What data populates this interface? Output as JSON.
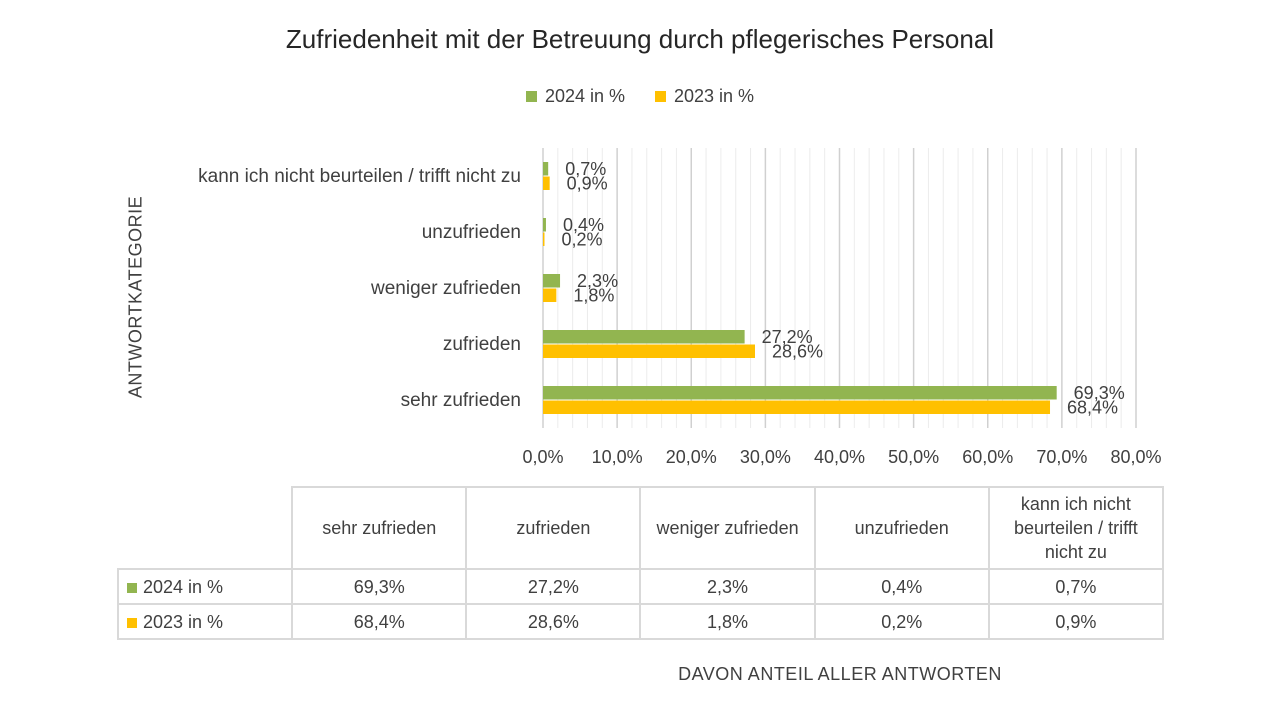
{
  "chart_data": {
    "type": "bar",
    "orientation": "horizontal",
    "title": "Zufriedenheit mit der Betreuung durch pflegerisches Personal",
    "ylabel": "ANTWORTKATEGORIE",
    "xlabel": "DAVON ANTEIL ALLER ANTWORTEN",
    "categories": [
      "sehr zufrieden",
      "zufrieden",
      "weniger zufrieden",
      "unzufrieden",
      "kann ich nicht beurteilen / trifft nicht zu"
    ],
    "series": [
      {
        "name": "2024 in %",
        "color": "#92b550",
        "values": [
          69.3,
          27.2,
          2.3,
          0.4,
          0.7
        ],
        "labels": [
          "69,3%",
          "27,2%",
          "2,3%",
          "0,4%",
          "0,7%"
        ]
      },
      {
        "name": "2023 in %",
        "color": "#ffc000",
        "values": [
          68.4,
          28.6,
          1.8,
          0.2,
          0.9
        ],
        "labels": [
          "68,4%",
          "28,6%",
          "1,8%",
          "0,2%",
          "0,9%"
        ]
      }
    ],
    "xlim": [
      0,
      80
    ],
    "xticks": [
      0,
      10,
      20,
      30,
      40,
      50,
      60,
      70,
      80
    ],
    "xtick_labels": [
      "0,0%",
      "10,0%",
      "20,0%",
      "30,0%",
      "40,0%",
      "50,0%",
      "60,0%",
      "70,0%",
      "80,0%"
    ],
    "grid": true,
    "legend": "top-center",
    "data_table": true
  },
  "table": {
    "headers": [
      "sehr zufrieden",
      "zufrieden",
      "weniger zufrieden",
      "unzufrieden",
      "kann ich nicht beurteilen / trifft nicht zu"
    ],
    "rows": [
      {
        "series": "2024 in %",
        "color": "#92b550",
        "cells": [
          "69,3%",
          "27,2%",
          "2,3%",
          "0,4%",
          "0,7%"
        ]
      },
      {
        "series": "2023 in %",
        "color": "#ffc000",
        "cells": [
          "68,4%",
          "28,6%",
          "1,8%",
          "0,2%",
          "0,9%"
        ]
      }
    ]
  }
}
